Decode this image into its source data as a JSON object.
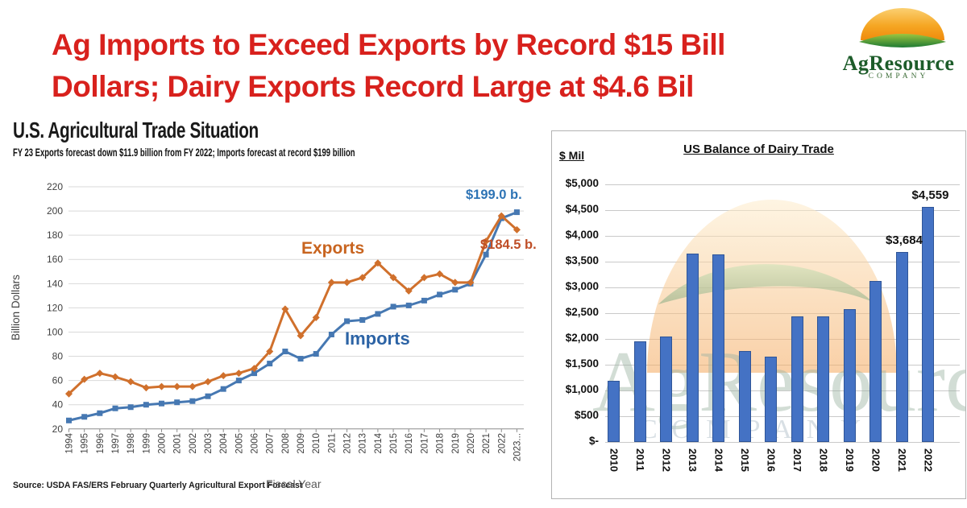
{
  "slide": {
    "title_line1": "Ag Imports to Exceed Exports by Record $15 Bill",
    "title_line2": "Dollars; Dairy Exports Record Large at $4.6 Bil",
    "title_color": "#d8211d"
  },
  "logo": {
    "name": "AgResource",
    "company": "COMPANY",
    "text_color": "#1d5c2a",
    "dome_colors": [
      "#fbd072",
      "#ef8a0c"
    ],
    "arc_colors": [
      "#9dc53f",
      "#1e7b34"
    ]
  },
  "left_chart": {
    "title": "U.S. Agricultural Trade Situation",
    "subtitle": "FY 23 Exports forecast down $11.9 billion from FY 2022; Imports forecast at record $199 billion",
    "y_axis_label": "Billion Dollars",
    "x_axis_label": "Fiscal Year",
    "source": "Source: USDA FAS/ERS February Quarterly Agricultural Export Forecast",
    "exports_label": "Exports",
    "imports_label": "Imports",
    "imports_annotation": "$199.0 b.",
    "exports_annotation": "$184.5 b."
  },
  "right_chart": {
    "title": "US Balance of Dairy Trade",
    "unit_label": "$ Mil"
  },
  "chart_data": [
    {
      "type": "line",
      "title": "U.S. Agricultural Trade Situation",
      "subtitle": "FY 23 Exports forecast down $11.9 billion from FY 2022; Imports forecast at record $199 billion",
      "xlabel": "Fiscal Year",
      "ylabel": "Billion Dollars",
      "ylim": [
        20,
        220
      ],
      "ytick_step": 20,
      "grid": true,
      "categories": [
        "1994",
        "1995",
        "1996",
        "1997",
        "1998",
        "1999",
        "2000",
        "2001",
        "2002",
        "2003",
        "2004",
        "2005",
        "2006",
        "2007",
        "2008",
        "2009",
        "2010",
        "2011",
        "2012",
        "2013",
        "2014",
        "2015",
        "2016",
        "2017",
        "2018",
        "2019",
        "2020",
        "2021",
        "2022",
        "2023..."
      ],
      "series": [
        {
          "name": "Imports",
          "color": "#4678b2",
          "marker": "square",
          "values": [
            27,
            30,
            33,
            37,
            38,
            40,
            41,
            42,
            43,
            47,
            53,
            60,
            66,
            74,
            84,
            78,
            82,
            98,
            109,
            110,
            115,
            121,
            122,
            126,
            131,
            135,
            140,
            164,
            194,
            199
          ]
        },
        {
          "name": "Exports",
          "color": "#d0702c",
          "marker": "diamond",
          "values": [
            49,
            61,
            66,
            63,
            59,
            54,
            55,
            55,
            55,
            59,
            64,
            66,
            70,
            84,
            119,
            97,
            112,
            141,
            141,
            145,
            157,
            145,
            134,
            145,
            148,
            141,
            141,
            175,
            196,
            184.5
          ]
        }
      ],
      "annotations": [
        {
          "text": "$199.0 b.",
          "series": "Imports",
          "color": "#2e74b5"
        },
        {
          "text": "$184.5 b.",
          "series": "Exports",
          "color": "#bf4e27"
        }
      ],
      "source": "Source: USDA FAS/ERS February Quarterly Agricultural Export Forecast"
    },
    {
      "type": "bar",
      "title": "US Balance of Dairy Trade",
      "ylabel": "$ Mil",
      "ylim": [
        0,
        5000
      ],
      "ytick_step": 500,
      "grid": true,
      "bar_color": "#4472c4",
      "categories": [
        "2010",
        "2011",
        "2012",
        "2013",
        "2014",
        "2015",
        "2016",
        "2017",
        "2018",
        "2019",
        "2020",
        "2021",
        "2022"
      ],
      "values": [
        1190,
        1960,
        2050,
        3660,
        3640,
        1770,
        1650,
        2430,
        2440,
        2580,
        3120,
        3684,
        4559
      ],
      "ytick_labels": [
        "$5,000",
        "$4,500",
        "$4,000",
        "$3,500",
        "$3,000",
        "$2,500",
        "$2,000",
        "$1,500",
        "$1,000",
        "$500",
        "$-"
      ],
      "ytick_values": [
        5000,
        4500,
        4000,
        3500,
        3000,
        2500,
        2000,
        1500,
        1000,
        500,
        0
      ],
      "bar_value_labels": [
        {
          "category": "2021",
          "index": 11,
          "text": "$3,684"
        },
        {
          "category": "2022",
          "index": 12,
          "text": "$4,559"
        }
      ]
    }
  ]
}
